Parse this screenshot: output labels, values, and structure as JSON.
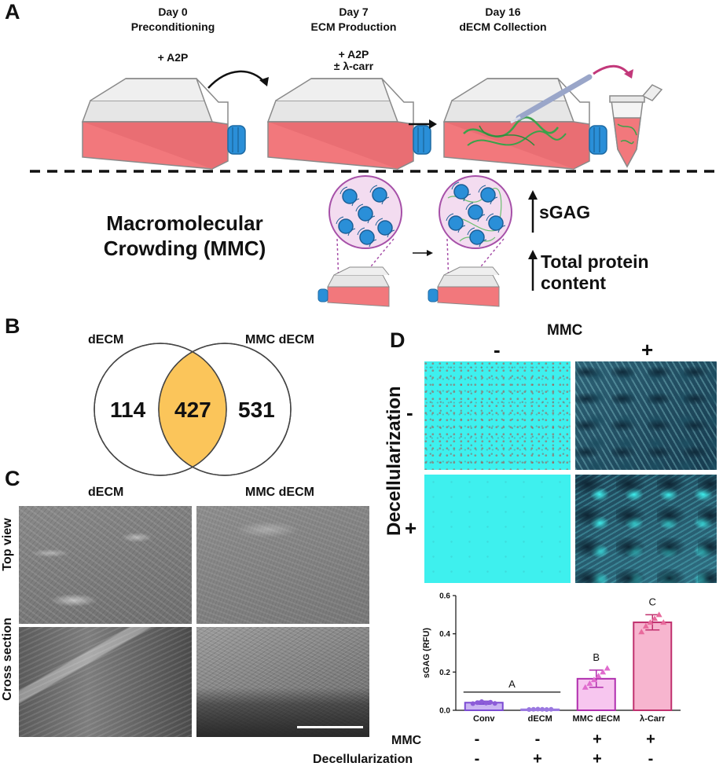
{
  "panel_a": {
    "letter": "A",
    "steps": [
      {
        "day": "Day 0",
        "name": "Preconditioning",
        "reagent_line1": "+ A2P",
        "reagent_line2": ""
      },
      {
        "day": "Day 7",
        "name": "ECM Production",
        "reagent_line1": "+ A2P",
        "reagent_line2": "± λ-carr"
      },
      {
        "day": "Day 16",
        "name": "dECM Collection",
        "reagent_line1": "",
        "reagent_line2": ""
      }
    ],
    "mmc_title_line1": "Macromolecular",
    "mmc_title_line2": "Crowding (MMC)",
    "effects": [
      {
        "line1": "sGAG",
        "line2": ""
      },
      {
        "line1": "Total protein",
        "line2": "content"
      }
    ],
    "colors": {
      "medium": "#f2787c",
      "cap": "#2a8fd8",
      "fibers": "#3aa24a",
      "arrow_magenta": "#c2387a",
      "zoom_fill": "#f3dcf0",
      "zoom_stroke": "#a650a8"
    }
  },
  "panel_b": {
    "letter": "B",
    "left_label": "dECM",
    "right_label": "MMC dECM",
    "left_only": "114",
    "overlap": "427",
    "right_only": "531",
    "overlap_color": "#fbc55a"
  },
  "panel_c": {
    "letter": "C",
    "col_labels": [
      "dECM",
      "MMC dECM"
    ],
    "row_labels": [
      "Top view",
      "Cross section"
    ]
  },
  "panel_d": {
    "letter": "D",
    "mmc_header": "MMC",
    "mmc_minus": "-",
    "mmc_plus": "+",
    "decell_label": "Decellularization",
    "decell_minus": "-",
    "decell_plus": "+",
    "stain_colors": {
      "cyan": "#3ef0ee",
      "dark": "#163a4e"
    },
    "table": {
      "mmc_label": "MMC",
      "decell_label": "Decellularization",
      "mmc_signs": [
        "-",
        "-",
        "+",
        "+"
      ],
      "decell_signs": [
        "-",
        "+",
        "+",
        "-"
      ]
    }
  },
  "chart_data": {
    "type": "bar",
    "categories": [
      "Conv",
      "dECM",
      "MMC dECM",
      "λ-Carr"
    ],
    "values": [
      0.04,
      0.005,
      0.165,
      0.46
    ],
    "errors": [
      0.008,
      0.002,
      0.045,
      0.04
    ],
    "points": [
      [
        0.035,
        0.04,
        0.045,
        0.038,
        0.042,
        0.036
      ],
      [
        0.004,
        0.005,
        0.006,
        0.005,
        0.004,
        0.005
      ],
      [
        0.12,
        0.14,
        0.16,
        0.18,
        0.2,
        0.22
      ],
      [
        0.41,
        0.44,
        0.46,
        0.48,
        0.5,
        0.46
      ]
    ],
    "significance": [
      "A",
      "",
      "B",
      "C"
    ],
    "ylabel": "sGAG (RFU)",
    "ylim": [
      0,
      0.6
    ],
    "yticks": [
      "0.0",
      "0.2",
      "0.4",
      "0.6"
    ],
    "colors": {
      "fill": [
        "#cab5f2",
        "#d8cbf5",
        "#f7c6ef",
        "#f7b5cf"
      ],
      "stroke": [
        "#7b4bd3",
        "#9a78e0",
        "#b02fae",
        "#c0306e"
      ],
      "point": [
        "#8c5cd8",
        "#9a78e0",
        "#e06ccd",
        "#e86a9c"
      ]
    }
  }
}
